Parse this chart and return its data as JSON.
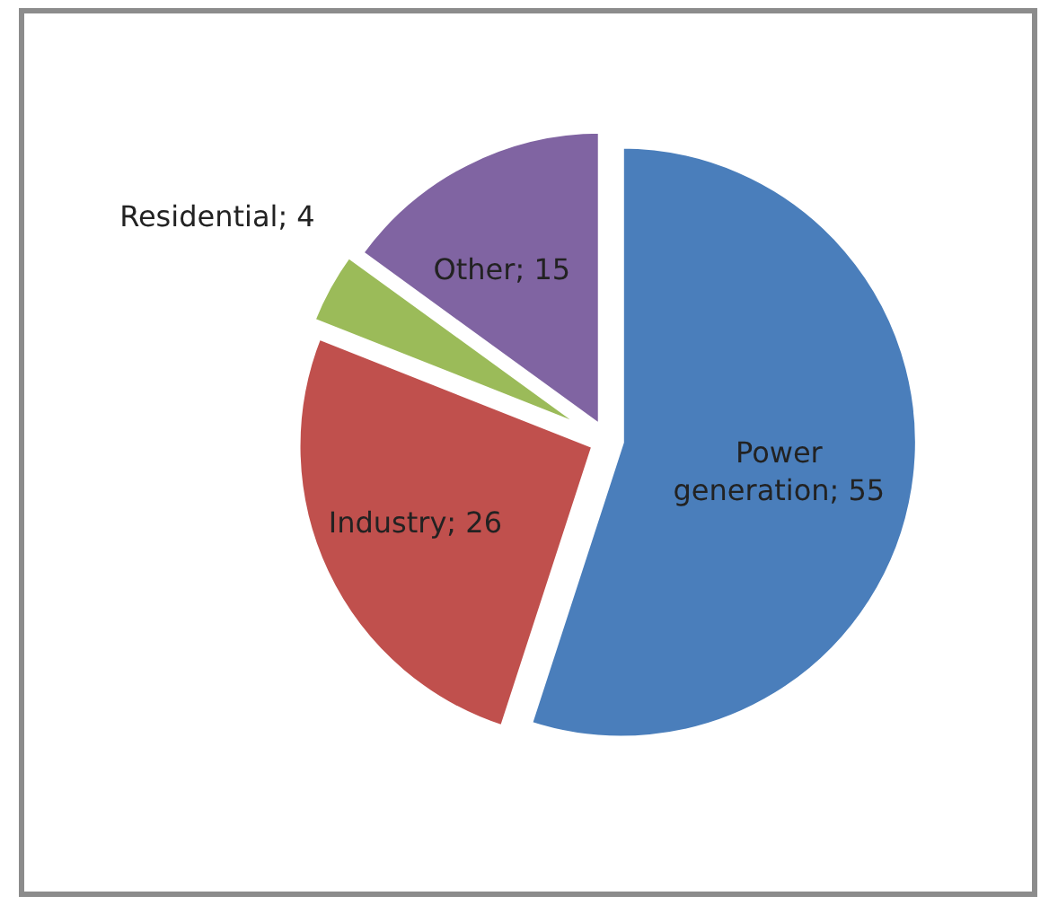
{
  "chart_data": {
    "type": "pie",
    "categories": [
      "Power generation; 55",
      "Industry; 26",
      "Residential; 4",
      "Other; 15"
    ],
    "values": [
      55,
      26,
      4,
      15
    ],
    "colors": [
      "#4a7ebb",
      "#c0504d",
      "#9bbb59",
      "#8064a2"
    ]
  }
}
